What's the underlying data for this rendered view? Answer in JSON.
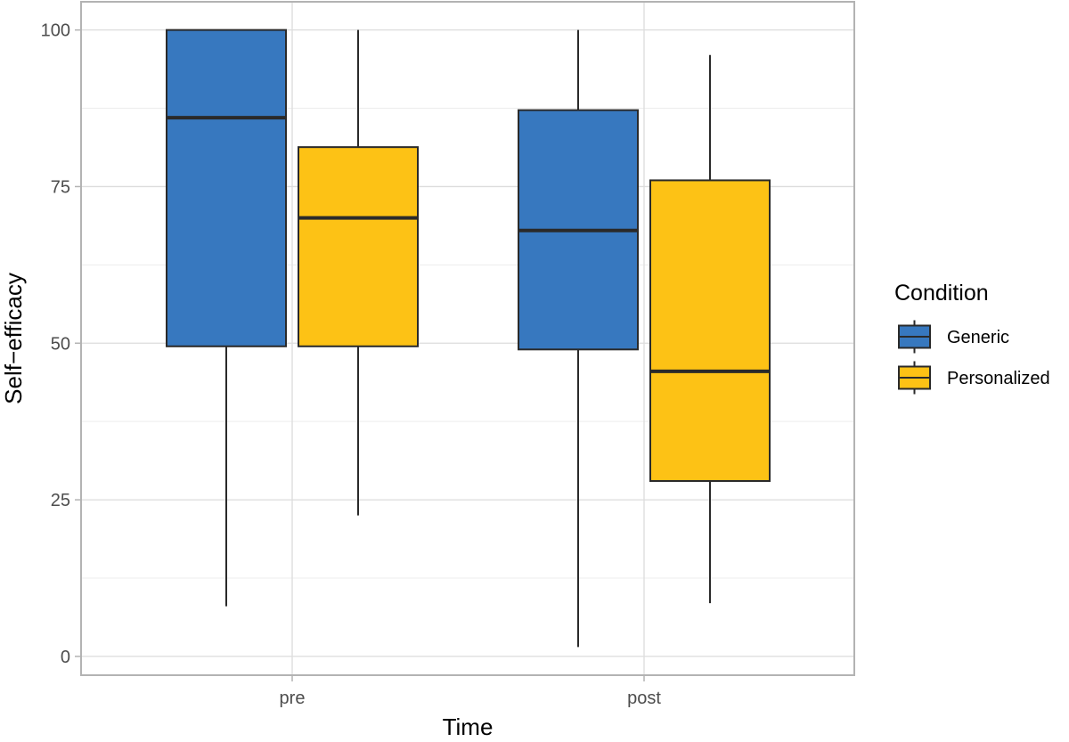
{
  "chart_data": {
    "type": "box",
    "xlabel": "Time",
    "ylabel": "Self−efficacy",
    "ylim": [
      -3,
      104.5
    ],
    "yticks": [
      0,
      25,
      50,
      75,
      100
    ],
    "ytick_labels": [
      "0",
      "25",
      "50",
      "75",
      "100"
    ],
    "grid": true,
    "categories": [
      "pre",
      "post"
    ],
    "legend": {
      "title": "Condition",
      "position": "right",
      "entries": [
        "Generic",
        "Personalized"
      ]
    },
    "series": [
      {
        "name": "Generic",
        "color": "#3778BF",
        "boxes": [
          {
            "category": "pre",
            "lower_whisker": 8,
            "q1": 49.5,
            "median": 86,
            "q3": 100,
            "upper_whisker": 100
          },
          {
            "category": "post",
            "lower_whisker": 1.5,
            "q1": 49,
            "median": 68,
            "q3": 87.2,
            "upper_whisker": 100
          }
        ]
      },
      {
        "name": "Personalized",
        "color": "#FDC215",
        "boxes": [
          {
            "category": "pre",
            "lower_whisker": 22.5,
            "q1": 49.5,
            "median": 70,
            "q3": 81.3,
            "upper_whisker": 100
          },
          {
            "category": "post",
            "lower_whisker": 8.5,
            "q1": 28,
            "median": 45.5,
            "q3": 76,
            "upper_whisker": 96
          }
        ]
      }
    ]
  },
  "colors": {
    "panel_border": "#B3B3B3",
    "grid_major": "#DCDCDC",
    "grid_minor": "#EDEDED",
    "box_stroke": "#2A2A2A"
  }
}
